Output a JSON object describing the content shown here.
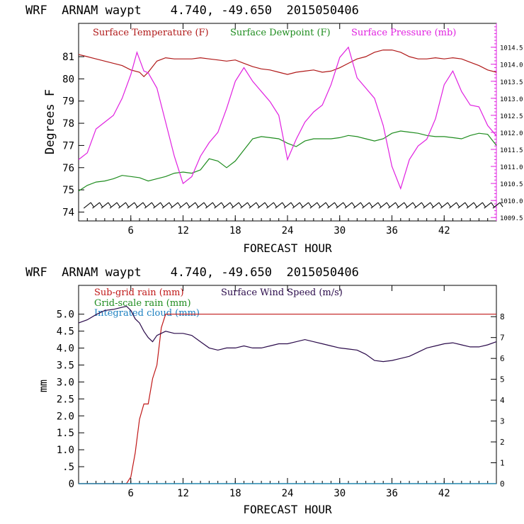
{
  "charts": [
    {
      "header": "WRF  ARNAM waypt    4.740, -49.650  2015050406",
      "xlabel": "FORECAST HOUR",
      "ylabel": "Degrees F",
      "x_ticks": [
        "6",
        "12",
        "18",
        "24",
        "30",
        "36",
        "42"
      ],
      "y_left_ticks": [
        "74",
        "75",
        "76",
        "77",
        "78",
        "79",
        "80",
        "81"
      ],
      "y_right_ticks": [
        "1009.5",
        "1010.0",
        "1010.5",
        "1011.0",
        "1011.5",
        "1012.0",
        "1012.5",
        "1013.0",
        "1013.5",
        "1014.0",
        "1014.5"
      ],
      "legend": [
        "Surface Temperature (F)",
        "Surface Dewpoint (F)",
        "Surface Pressure (mb)"
      ]
    },
    {
      "header": "WRF  ARNAM waypt    4.740, -49.650  2015050406",
      "xlabel": "FORECAST HOUR",
      "ylabel": "mm",
      "x_ticks": [
        "6",
        "12",
        "18",
        "24",
        "30",
        "36",
        "42"
      ],
      "y_left_ticks": [
        "0",
        ".5",
        "1.0",
        "1.5",
        "2.0",
        "2.5",
        "3.0",
        "3.5",
        "4.0",
        "4.5",
        "5.0"
      ],
      "y_right_ticks": [
        "0",
        "1",
        "2",
        "3",
        "4",
        "5",
        "6",
        "7",
        "8"
      ],
      "legend": [
        "Sub-grid rain (mm)",
        "Surface Wind Speed (m/s)",
        "Grid-scale rain (mm)",
        "Integrated cloud (mm)"
      ]
    }
  ],
  "colors": {
    "temperature": "#b01818",
    "dewpoint": "#1e8c1e",
    "pressure": "#e020e0",
    "subgrid_rain": "#c01818",
    "wind": "#2a0a4a",
    "grid_rain": "#1e8c1e",
    "cloud": "#1a7fc0",
    "wind_barbs": "#000000"
  },
  "chart_data": [
    {
      "type": "line",
      "title": "WRF  ARNAM waypt    4.740, -49.650  2015050406",
      "xlabel": "FORECAST HOUR",
      "ylabel": "Degrees F",
      "xlim": [
        0,
        48
      ],
      "ylim": [
        73.6,
        82.5
      ],
      "y2lim": [
        1009.4,
        1015.2
      ],
      "grid": false,
      "legend_position": "top",
      "series": [
        {
          "name": "Surface Temperature (F)",
          "axis": "left",
          "x": [
            0,
            1,
            2,
            3,
            4,
            5,
            6,
            7,
            7.5,
            8,
            9,
            10,
            11,
            12,
            13,
            14,
            15,
            16,
            17,
            18,
            19,
            20,
            21,
            22,
            23,
            24,
            25,
            26,
            27,
            28,
            29,
            30,
            31,
            32,
            33,
            34,
            35,
            36,
            37,
            38,
            39,
            40,
            41,
            42,
            43,
            44,
            45,
            46,
            47,
            48
          ],
          "values": [
            81.1,
            81.0,
            80.9,
            80.8,
            80.7,
            80.6,
            80.4,
            80.3,
            80.1,
            80.3,
            80.8,
            80.95,
            80.9,
            80.9,
            80.9,
            80.95,
            80.9,
            80.85,
            80.8,
            80.85,
            80.7,
            80.55,
            80.45,
            80.4,
            80.3,
            80.2,
            80.3,
            80.35,
            80.4,
            80.3,
            80.35,
            80.5,
            80.7,
            80.9,
            81.0,
            81.2,
            81.3,
            81.3,
            81.2,
            81.0,
            80.9,
            80.9,
            80.95,
            80.9,
            80.95,
            80.9,
            80.75,
            80.6,
            80.4,
            80.3
          ]
        },
        {
          "name": "Surface Dewpoint (F)",
          "axis": "left",
          "x": [
            0,
            1,
            2,
            3,
            4,
            5,
            6,
            7,
            8,
            9,
            10,
            11,
            12,
            13,
            14,
            15,
            16,
            17,
            18,
            19,
            20,
            21,
            22,
            23,
            24,
            25,
            26,
            27,
            28,
            29,
            30,
            31,
            32,
            33,
            34,
            35,
            36,
            37,
            38,
            39,
            40,
            41,
            42,
            43,
            44,
            45,
            46,
            47,
            48
          ],
          "values": [
            74.95,
            75.2,
            75.35,
            75.4,
            75.5,
            75.65,
            75.6,
            75.55,
            75.4,
            75.5,
            75.6,
            75.75,
            75.8,
            75.75,
            75.9,
            76.4,
            76.3,
            76.0,
            76.3,
            76.8,
            77.3,
            77.4,
            77.35,
            77.3,
            77.1,
            76.95,
            77.2,
            77.3,
            77.3,
            77.3,
            77.35,
            77.45,
            77.4,
            77.3,
            77.2,
            77.3,
            77.55,
            77.65,
            77.6,
            77.55,
            77.45,
            77.4,
            77.4,
            77.35,
            77.3,
            77.45,
            77.55,
            77.5,
            77.0
          ]
        },
        {
          "name": "Surface Pressure (mb)",
          "axis": "right",
          "x": [
            0,
            1,
            2,
            3,
            4,
            5,
            6,
            6.7,
            7.5,
            8,
            9,
            10,
            11,
            12,
            13,
            14,
            15,
            16,
            17,
            18,
            19,
            20,
            21,
            22,
            23,
            24,
            25,
            26,
            27,
            28,
            29,
            30,
            31,
            32,
            33,
            34,
            35,
            36,
            37,
            38,
            39,
            40,
            41,
            42,
            43,
            44,
            45,
            46,
            47,
            48
          ],
          "values": [
            1011.2,
            1011.4,
            1012.1,
            1012.3,
            1012.5,
            1013.0,
            1013.7,
            1014.35,
            1013.8,
            1013.75,
            1013.3,
            1012.3,
            1011.3,
            1010.5,
            1010.7,
            1011.3,
            1011.7,
            1012.0,
            1012.7,
            1013.5,
            1013.9,
            1013.5,
            1013.2,
            1012.9,
            1012.5,
            1011.2,
            1011.8,
            1012.3,
            1012.6,
            1012.8,
            1013.4,
            1014.2,
            1014.5,
            1013.6,
            1013.3,
            1013.0,
            1012.2,
            1011.0,
            1010.35,
            1011.2,
            1011.6,
            1011.8,
            1012.4,
            1013.4,
            1013.8,
            1013.2,
            1012.8,
            1012.75,
            1012.2,
            1011.9
          ]
        }
      ],
      "wind_barbs_row": 74.3
    },
    {
      "type": "line",
      "title": "WRF  ARNAM waypt    4.740, -49.650  2015050406",
      "xlabel": "FORECAST HOUR",
      "ylabel": "mm",
      "xlim": [
        0,
        48
      ],
      "ylim": [
        0,
        5.85
      ],
      "y2lim": [
        0,
        9.5
      ],
      "grid": false,
      "legend_position": "top",
      "series": [
        {
          "name": "Sub-grid rain (mm)",
          "axis": "left",
          "x": [
            0,
            5.5,
            6,
            6.5,
            7,
            7.5,
            8,
            8.5,
            9,
            9.5,
            10,
            48
          ],
          "values": [
            0,
            0,
            0.2,
            0.9,
            1.9,
            2.35,
            2.35,
            3.1,
            3.5,
            4.6,
            5.0,
            5.0
          ]
        },
        {
          "name": "Surface Wind Speed (m/s)",
          "axis": "right",
          "x": [
            0,
            1,
            2,
            3,
            4,
            5,
            5.5,
            6,
            6.5,
            7,
            7.5,
            8,
            8.5,
            9,
            10,
            11,
            12,
            13,
            14,
            15,
            16,
            17,
            18,
            19,
            20,
            21,
            22,
            23,
            24,
            25,
            26,
            27,
            28,
            29,
            30,
            31,
            32,
            33,
            34,
            35,
            36,
            37,
            38,
            39,
            40,
            41,
            42,
            43,
            44,
            45,
            46,
            47,
            48
          ],
          "values": [
            7.7,
            7.85,
            8.1,
            8.3,
            8.35,
            8.45,
            8.5,
            8.3,
            7.9,
            7.7,
            7.3,
            7.0,
            6.8,
            7.1,
            7.3,
            7.2,
            7.2,
            7.1,
            6.8,
            6.5,
            6.4,
            6.5,
            6.5,
            6.6,
            6.5,
            6.5,
            6.6,
            6.7,
            6.7,
            6.8,
            6.9,
            6.8,
            6.7,
            6.6,
            6.5,
            6.45,
            6.4,
            6.2,
            5.9,
            5.85,
            5.9,
            6.0,
            6.1,
            6.3,
            6.5,
            6.6,
            6.7,
            6.75,
            6.65,
            6.55,
            6.55,
            6.65,
            6.8
          ]
        },
        {
          "name": "Grid-scale rain (mm)",
          "axis": "left",
          "x": [
            0,
            48
          ],
          "values": [
            0,
            0
          ]
        },
        {
          "name": "Integrated cloud (mm)",
          "axis": "left",
          "x": [
            0,
            48
          ],
          "values": [
            0,
            0
          ]
        }
      ]
    }
  ]
}
